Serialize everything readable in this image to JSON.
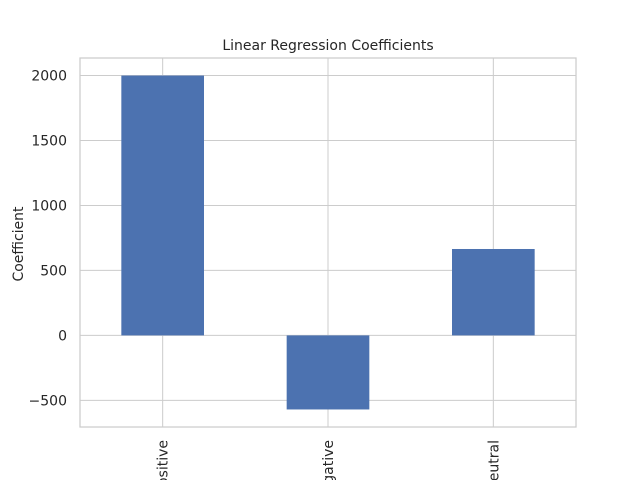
{
  "chart_data": {
    "type": "bar",
    "title": "Linear Regression Coefficients",
    "xlabel": "",
    "ylabel": "Coefficient",
    "categories": [
      "positive",
      "negative",
      "neutral"
    ],
    "values": [
      2000,
      -570,
      665
    ],
    "ylim": [
      -705,
      2135
    ],
    "yticks": [
      -500,
      0,
      500,
      1000,
      1500,
      2000
    ],
    "ytick_labels": [
      "−500",
      "0",
      "500",
      "1000",
      "1500",
      "2000"
    ],
    "grid": true,
    "bar_color": "#4c72b0"
  }
}
